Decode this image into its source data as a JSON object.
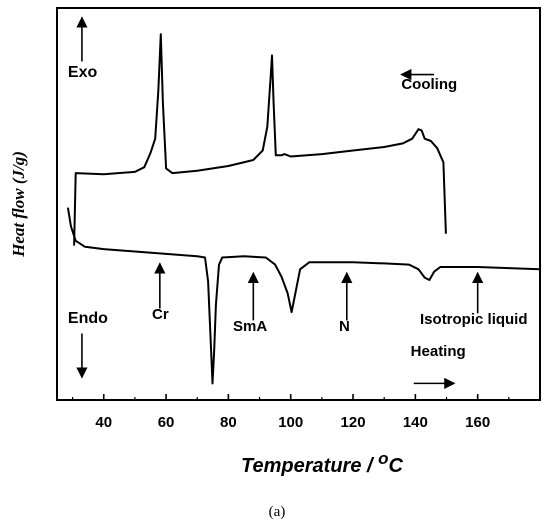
{
  "chart_data": {
    "type": "line",
    "xlabel": "Temperature / ",
    "xlabel_unit_sup": "o",
    "xlabel_unit": "C",
    "ylabel": "Heat flow (J/g)",
    "caption": "(a)",
    "xlim": [
      25,
      180
    ],
    "x_ticks": [
      40,
      60,
      80,
      100,
      120,
      140,
      160
    ],
    "y_ticks_shown": false,
    "grid": false,
    "series": [
      {
        "name": "Cooling",
        "points": [
          [
            30.5,
            5.0
          ],
          [
            31,
            8.05
          ],
          [
            40,
            8.0
          ],
          [
            50,
            8.1
          ],
          [
            53,
            8.3
          ],
          [
            55,
            8.9
          ],
          [
            56.5,
            9.5
          ],
          [
            57.5,
            11.5
          ],
          [
            58.3,
            13.9
          ],
          [
            59,
            11.0
          ],
          [
            60,
            8.25
          ],
          [
            62,
            8.05
          ],
          [
            70,
            8.15
          ],
          [
            80,
            8.35
          ],
          [
            88,
            8.6
          ],
          [
            91,
            9.0
          ],
          [
            92.5,
            10.0
          ],
          [
            93.5,
            12.0
          ],
          [
            94,
            13.0
          ],
          [
            94.5,
            11.0
          ],
          [
            95.2,
            8.8
          ],
          [
            97,
            8.8
          ],
          [
            98,
            8.85
          ],
          [
            100,
            8.75
          ],
          [
            110,
            8.85
          ],
          [
            120,
            9.0
          ],
          [
            130,
            9.15
          ],
          [
            136,
            9.3
          ],
          [
            139,
            9.5
          ],
          [
            141,
            9.9
          ],
          [
            142,
            9.85
          ],
          [
            143,
            9.5
          ],
          [
            145,
            9.4
          ],
          [
            147,
            9.1
          ],
          [
            149,
            8.5
          ],
          [
            149.8,
            5.5
          ]
        ]
      },
      {
        "name": "Heating",
        "points": [
          [
            28.5,
            6.6
          ],
          [
            29.5,
            5.8
          ],
          [
            31,
            5.2
          ],
          [
            34,
            4.95
          ],
          [
            40,
            4.85
          ],
          [
            50,
            4.75
          ],
          [
            60,
            4.65
          ],
          [
            70,
            4.55
          ],
          [
            72.5,
            4.5
          ],
          [
            73.5,
            3.5
          ],
          [
            74.5,
            0.5
          ],
          [
            74.9,
            -0.8
          ],
          [
            75.4,
            0.5
          ],
          [
            76,
            2.5
          ],
          [
            77,
            4.2
          ],
          [
            78,
            4.5
          ],
          [
            85,
            4.55
          ],
          [
            92,
            4.5
          ],
          [
            95,
            4.2
          ],
          [
            97,
            3.7
          ],
          [
            99,
            3.0
          ],
          [
            100.3,
            2.2
          ],
          [
            101.5,
            3.0
          ],
          [
            103,
            4.0
          ],
          [
            106,
            4.3
          ],
          [
            110,
            4.3
          ],
          [
            120,
            4.3
          ],
          [
            130,
            4.25
          ],
          [
            138,
            4.2
          ],
          [
            141,
            4.0
          ],
          [
            143,
            3.65
          ],
          [
            144.5,
            3.55
          ],
          [
            146,
            3.9
          ],
          [
            148,
            4.1
          ],
          [
            150,
            4.1
          ],
          [
            160,
            4.1
          ],
          [
            170,
            4.05
          ],
          [
            180,
            4.0
          ]
        ]
      }
    ],
    "annotations": [
      {
        "text": "Exo",
        "x": 28.5,
        "y": 12.1,
        "class": "big-anno"
      },
      {
        "text": "Endo",
        "x": 28.5,
        "y": 1.75,
        "class": "big-anno"
      },
      {
        "text": "Cooling",
        "x": 135.5,
        "y": 11.6,
        "class": "anno"
      },
      {
        "text": "Heating",
        "x": 138.5,
        "y": 0.35,
        "class": "anno"
      },
      {
        "text": "Cr",
        "x": 55.5,
        "y": 1.9,
        "class": "anno"
      },
      {
        "text": "SmA",
        "x": 81.5,
        "y": 1.4,
        "class": "anno"
      },
      {
        "text": "N",
        "x": 115.5,
        "y": 1.4,
        "class": "anno"
      },
      {
        "text": "Isotropic liquid",
        "x": 141.5,
        "y": 1.7,
        "class": "anno"
      }
    ],
    "arrows": [
      {
        "label": "exo-up-arrow",
        "from": [
          33,
          12.75
        ],
        "to": [
          33,
          14.6
        ]
      },
      {
        "label": "endo-down-arrow",
        "from": [
          33,
          1.3
        ],
        "to": [
          33,
          -0.55
        ]
      },
      {
        "label": "cooling-left-arrow",
        "from": [
          146,
          12.2
        ],
        "to": [
          135.5,
          12.2
        ]
      },
      {
        "label": "heating-right-arrow",
        "from": [
          139.5,
          -0.8
        ],
        "to": [
          152.5,
          -0.8
        ]
      },
      {
        "label": "cr-arrow",
        "from": [
          58,
          2.35
        ],
        "to": [
          58,
          4.25
        ]
      },
      {
        "label": "sma-arrow",
        "from": [
          88,
          1.85
        ],
        "to": [
          88,
          3.85
        ]
      },
      {
        "label": "n-arrow",
        "from": [
          118,
          1.85
        ],
        "to": [
          118,
          3.85
        ]
      },
      {
        "label": "iso-arrow",
        "from": [
          160,
          2.15
        ],
        "to": [
          160,
          3.85
        ]
      }
    ]
  }
}
